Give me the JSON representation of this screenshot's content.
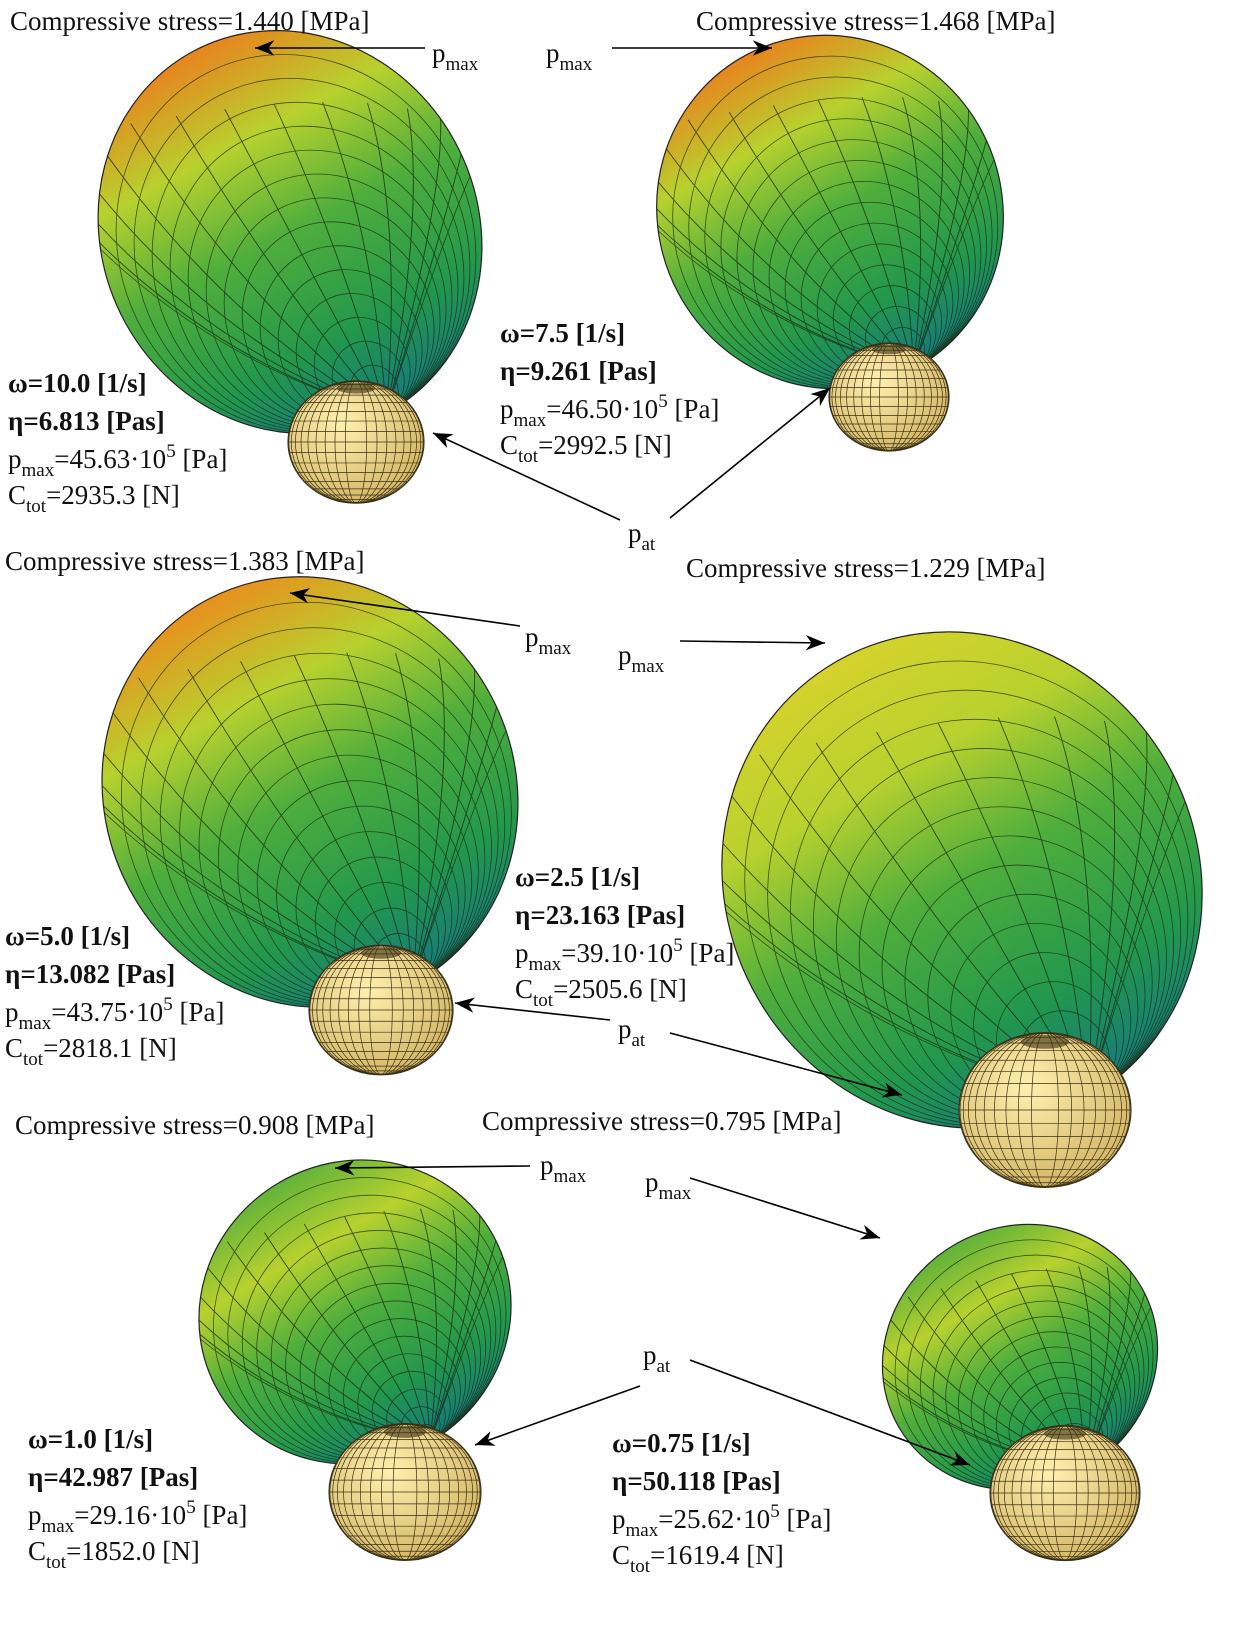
{
  "panels": [
    {
      "stress": "Compressive stress=1.440 [MPa]",
      "omega": "ω=10.0 [1/s]",
      "eta": "η=6.813 [Pas]",
      "pmax": {
        "symbol": "p",
        "sub": "max",
        "value": "=45.63·10",
        "exp": "5",
        "unit": " [Pa]"
      },
      "ctot": {
        "symbol": "C",
        "sub": "tot",
        "value": "=2935.3 [N]"
      }
    },
    {
      "stress": "Compressive stress=1.468 [MPa]",
      "omega": "ω=7.5 [1/s]",
      "eta": "η=9.261 [Pas]",
      "pmax": {
        "symbol": "p",
        "sub": "max",
        "value": "=46.50·10",
        "exp": "5",
        "unit": " [Pa]"
      },
      "ctot": {
        "symbol": "C",
        "sub": "tot",
        "value": "=2992.5 [N]"
      }
    },
    {
      "stress": "Compressive stress=1.383 [MPa]",
      "omega": "ω=5.0 [1/s]",
      "eta": "η=13.082 [Pas]",
      "pmax": {
        "symbol": "p",
        "sub": "max",
        "value": "=43.75·10",
        "exp": "5",
        "unit": " [Pa]"
      },
      "ctot": {
        "symbol": "C",
        "sub": "tot",
        "value": "=2818.1 [N]"
      }
    },
    {
      "stress": "Compressive stress=1.229 [MPa]",
      "omega": "ω=2.5 [1/s]",
      "eta": "η=23.163 [Pas]",
      "pmax": {
        "symbol": "p",
        "sub": "max",
        "value": "=39.10·10",
        "exp": "5",
        "unit": " [Pa]"
      },
      "ctot": {
        "symbol": "C",
        "sub": "tot",
        "value": "=2505.6 [N]"
      }
    },
    {
      "stress": "Compressive stress=0.908 [MPa]",
      "omega": "ω=1.0 [1/s]",
      "eta": "η=42.987 [Pas]",
      "pmax": {
        "symbol": "p",
        "sub": "max",
        "value": "=29.16·10",
        "exp": "5",
        "unit": " [Pa]"
      },
      "ctot": {
        "symbol": "C",
        "sub": "tot",
        "value": "=1852.0 [N]"
      }
    },
    {
      "stress": "Compressive stress=0.795 [MPa]",
      "omega": "ω=0.75 [1/s]",
      "eta": "η=50.118 [Pas]",
      "pmax": {
        "symbol": "p",
        "sub": "max",
        "value": "=25.62·10",
        "exp": "5",
        "unit": " [Pa]"
      },
      "ctot": {
        "symbol": "C",
        "sub": "tot",
        "value": "=1619.4 [N]"
      }
    }
  ],
  "pointer_labels": {
    "pmax": {
      "symbol": "p",
      "sub": "max"
    },
    "pat": {
      "symbol": "p",
      "sub": "at"
    }
  }
}
